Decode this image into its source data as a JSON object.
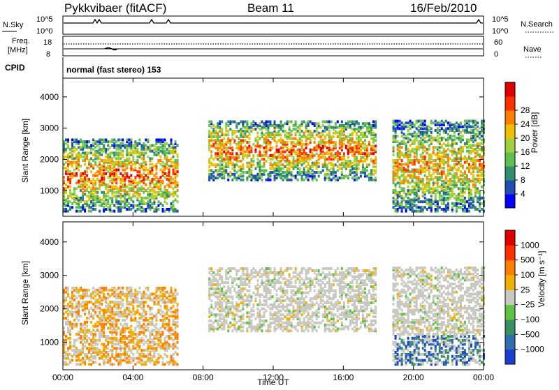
{
  "header": {
    "radar": "Pykkvibaer (fitACF)",
    "beam": "Beam 11",
    "date": "16/Feb/2010"
  },
  "nsky_panel": {
    "label": "N.Sky",
    "tick_top": "10^5",
    "tick_bottom": "10^0",
    "right_label": "N.Search",
    "right_tick_top": "10^5",
    "right_tick_bottom": "10^0"
  },
  "freq_panel": {
    "label_line1": "Freq.",
    "label_line2": "[MHz]",
    "tick_top": "18",
    "tick_bottom": "8",
    "right_label": "Nave",
    "right_tick_top": "60",
    "right_tick_bottom": "0"
  },
  "cpid": {
    "label": "CPID",
    "value": "normal (fast stereo) 153"
  },
  "chart_data": [
    {
      "type": "heatmap",
      "name": "power",
      "ylabel": "Slant Range [km]",
      "yticks": [
        "1000",
        "2000",
        "3000",
        "4000"
      ],
      "ytick_values": [
        1000,
        2000,
        3000,
        4000
      ],
      "ylim": [
        180,
        4600
      ],
      "xlim_hours": [
        0,
        24
      ],
      "colorbar": {
        "label": "Power [dB]",
        "ticks": [
          "4",
          "8",
          "12",
          "16",
          "20",
          "24",
          "28"
        ],
        "colors": [
          "#0000ff",
          "#1f4fb0",
          "#2f8f6f",
          "#5fc04f",
          "#a0d040",
          "#f0c000",
          "#ff8000",
          "#ff3000",
          "#e00000"
        ]
      },
      "echo_regions": [
        {
          "t0": 0.0,
          "t1": 6.5,
          "r0": 300,
          "r1": 2600,
          "level": "high"
        },
        {
          "t0": 8.3,
          "t1": 17.8,
          "r0": 1300,
          "r1": 3200,
          "level": "high"
        },
        {
          "t0": 18.8,
          "t1": 24.0,
          "r0": 300,
          "r1": 3200,
          "level": "medium"
        }
      ]
    },
    {
      "type": "heatmap",
      "name": "velocity",
      "ylabel": "Slant Range [km]",
      "yticks": [
        "1000",
        "2000",
        "3000",
        "4000"
      ],
      "ytick_values": [
        1000,
        2000,
        3000,
        4000
      ],
      "ylim": [
        180,
        4600
      ],
      "xlim_hours": [
        0,
        24
      ],
      "xticks": [
        "00:00",
        "04:00",
        "08:00",
        "12:00",
        "16:00",
        "20:00",
        "00:00"
      ],
      "xlabel": "Time UT",
      "colorbar": {
        "label": "Velocity [m s⁻¹]",
        "ticks": [
          "1000",
          "500",
          "100",
          "25",
          "−25",
          "−100",
          "−500",
          "−1000"
        ],
        "colors": [
          "#1a3fd0",
          "#2f6fb0",
          "#3a9060",
          "#60c040",
          "#c8c8c0",
          "#f0b000",
          "#ff8000",
          "#ff3000",
          "#e00000"
        ]
      }
    }
  ]
}
